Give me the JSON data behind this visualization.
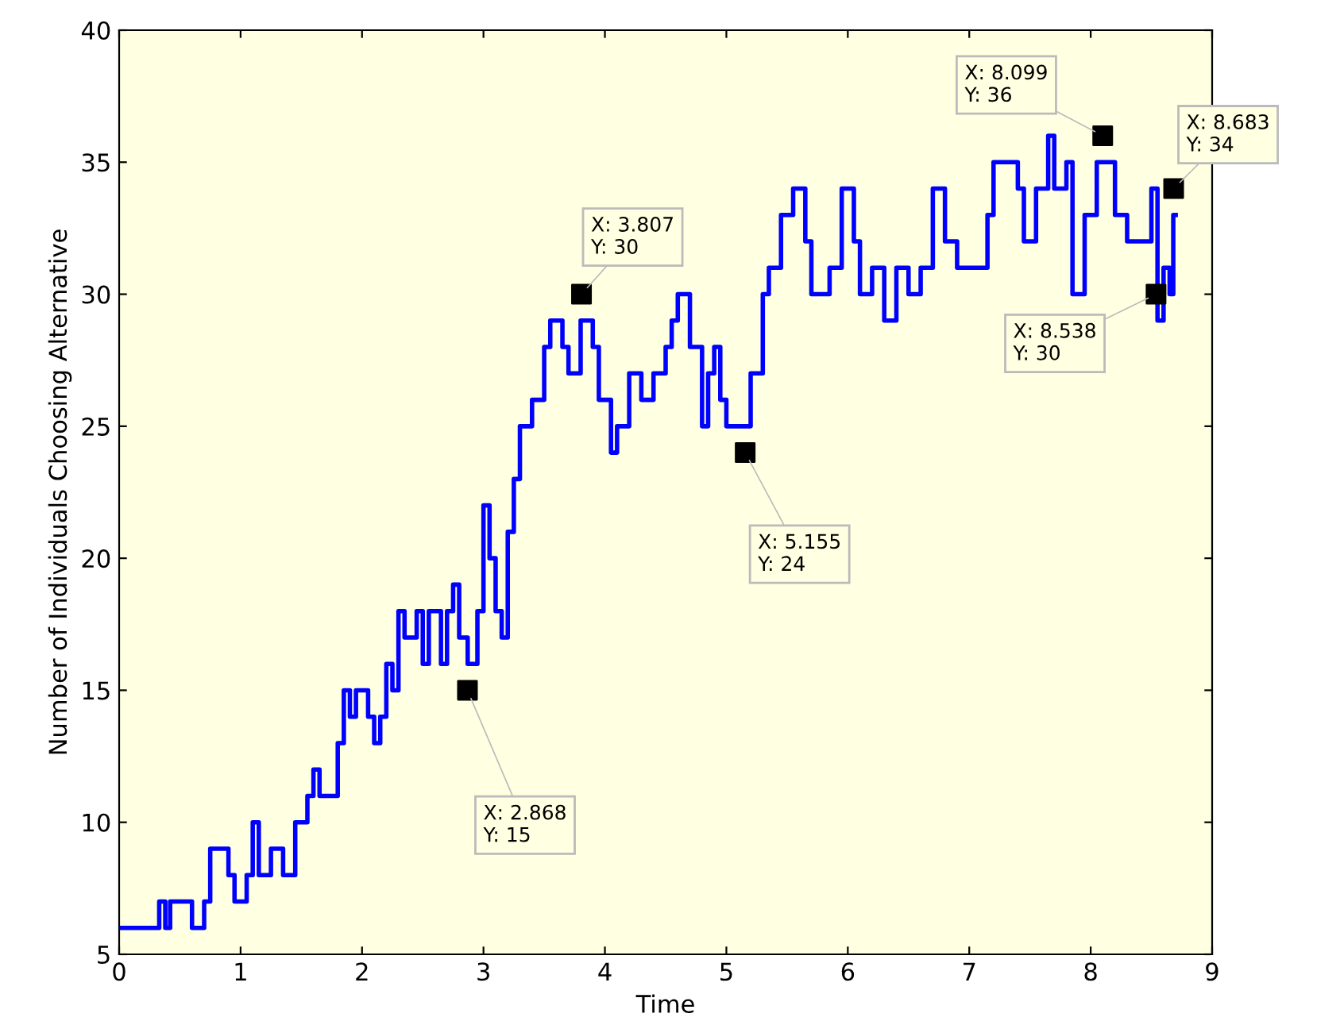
{
  "chart_data": {
    "type": "step",
    "xlabel": "Time",
    "ylabel": "Number of Individuals Choosing Alternative",
    "xlim": [
      0,
      9
    ],
    "ylim": [
      5,
      40
    ],
    "xticks": [
      0,
      1,
      2,
      3,
      4,
      5,
      6,
      7,
      8,
      9
    ],
    "yticks": [
      5,
      10,
      15,
      20,
      25,
      30,
      35,
      40
    ],
    "grid": false,
    "legend": false,
    "series": [
      {
        "type": "step",
        "color": "#0000ff",
        "x": [
          0,
          0.33,
          0.38,
          0.42,
          0.6,
          0.7,
          0.75,
          0.9,
          0.95,
          1.05,
          1.1,
          1.15,
          1.25,
          1.35,
          1.45,
          1.55,
          1.6,
          1.65,
          1.8,
          1.85,
          1.9,
          1.95,
          2.05,
          2.1,
          2.15,
          2.2,
          2.25,
          2.3,
          2.35,
          2.45,
          2.5,
          2.55,
          2.65,
          2.7,
          2.75,
          2.8,
          2.87,
          2.95,
          3.0,
          3.05,
          3.1,
          3.15,
          3.2,
          3.25,
          3.3,
          3.4,
          3.5,
          3.55,
          3.65,
          3.7,
          3.8,
          3.9,
          3.95,
          4.05,
          4.1,
          4.2,
          4.3,
          4.4,
          4.5,
          4.55,
          4.6,
          4.7,
          4.8,
          4.85,
          4.9,
          4.95,
          5.0,
          5.15,
          5.2,
          5.3,
          5.35,
          5.45,
          5.55,
          5.65,
          5.7,
          5.85,
          5.95,
          6.05,
          6.1,
          6.2,
          6.3,
          6.4,
          6.5,
          6.6,
          6.7,
          6.8,
          6.9,
          7.1,
          7.15,
          7.2,
          7.4,
          7.45,
          7.55,
          7.65,
          7.7,
          7.8,
          7.85,
          7.95,
          8.05,
          8.2,
          8.3,
          8.5,
          8.55,
          8.6,
          8.65,
          8.68,
          8.7
        ],
        "values": [
          6,
          7,
          6,
          7,
          6,
          7,
          9,
          8,
          7,
          8,
          10,
          8,
          9,
          8,
          10,
          11,
          12,
          11,
          13,
          15,
          14,
          15,
          14,
          13,
          14,
          16,
          15,
          18,
          17,
          18,
          16,
          18,
          16,
          18,
          19,
          17,
          16,
          18,
          22,
          20,
          18,
          17,
          21,
          23,
          25,
          26,
          28,
          29,
          28,
          27,
          29,
          28,
          26,
          24,
          25,
          27,
          26,
          27,
          28,
          29,
          30,
          28,
          25,
          27,
          28,
          26,
          25,
          25,
          27,
          30,
          31,
          33,
          34,
          32,
          30,
          31,
          34,
          32,
          30,
          31,
          29,
          31,
          30,
          31,
          34,
          32,
          31,
          31,
          33,
          35,
          34,
          32,
          34,
          36,
          34,
          35,
          30,
          33,
          35,
          33,
          32,
          34,
          29,
          31,
          30,
          33,
          33
        ]
      },
      {
        "type": "scatter",
        "color": "#000000",
        "marker": "square",
        "x": [
          2.868,
          3.807,
          5.155,
          8.099,
          8.538,
          8.683
        ],
        "values": [
          15,
          30,
          24,
          36,
          30,
          34
        ]
      }
    ],
    "annotations": [
      {
        "text": "X: 2.868\nY: 15",
        "x": 2.868,
        "y": 15
      },
      {
        "text": "X: 3.807\nY: 30",
        "x": 3.807,
        "y": 30
      },
      {
        "text": "X: 5.155\nY: 24",
        "x": 5.155,
        "y": 24
      },
      {
        "text": "X: 8.099\nY: 36",
        "x": 8.099,
        "y": 36
      },
      {
        "text": "X: 8.538\nY: 30",
        "x": 8.538,
        "y": 30
      },
      {
        "text": "X: 8.683\nY: 34",
        "x": 8.683,
        "y": 34
      }
    ]
  }
}
